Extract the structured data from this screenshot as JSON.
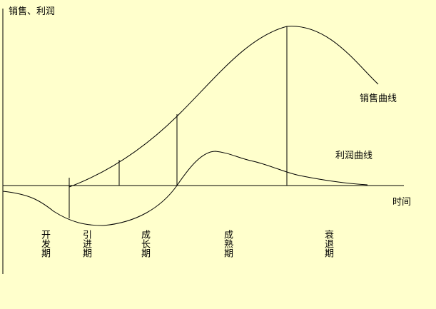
{
  "axes": {
    "y_label": "销售、利润",
    "x_label": "时间"
  },
  "curves": {
    "sales_label": "销售曲线",
    "profit_label": "利润曲线"
  },
  "stages": [
    {
      "label": "开发期"
    },
    {
      "label": "引进期"
    },
    {
      "label": "成长期"
    },
    {
      "label": "成熟期"
    },
    {
      "label": "衰退期"
    }
  ],
  "colors": {
    "background": "#ffffcc",
    "line": "#000000"
  }
}
